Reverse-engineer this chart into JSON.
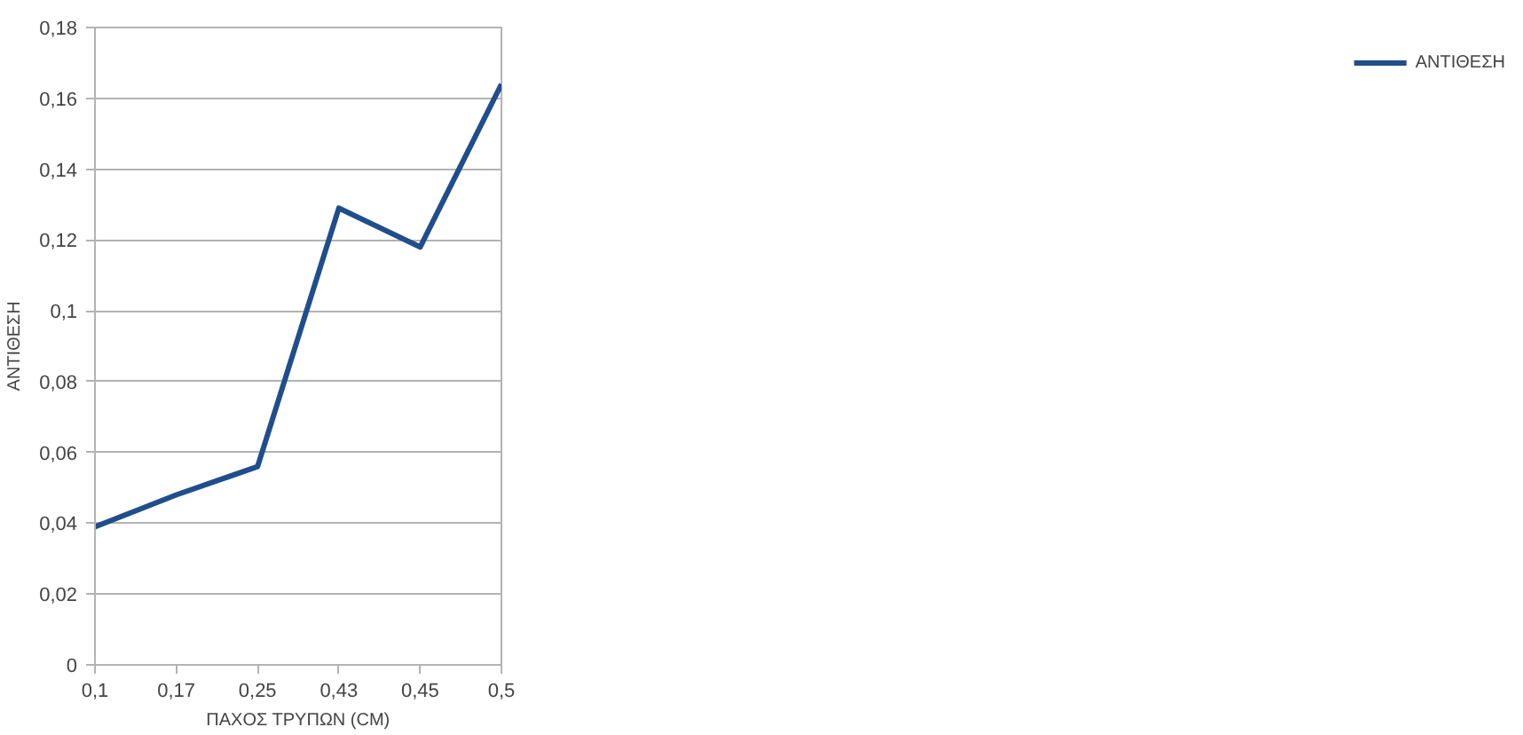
{
  "chart_data": {
    "type": "line",
    "xlabel": "ΠΑΧΟΣ ΤΡΥΠΩΝ (CM)",
    "ylabel": "ΑΝΤΙΘΕΣΗ",
    "categories": [
      "0,1",
      "0,17",
      "0,25",
      "0,43",
      "0,45",
      "0,5"
    ],
    "series": [
      {
        "name": "ΑΝΤΙΘΕΣΗ",
        "color": "#1f4e8c",
        "values": [
          0.039,
          0.048,
          0.056,
          0.129,
          0.118,
          0.164
        ]
      }
    ],
    "ylim": [
      0,
      0.18
    ],
    "yticks": [
      0,
      {
        "value": 0.02,
        "label": "0,02"
      },
      {
        "value": 0.04,
        "label": "0,04"
      },
      {
        "value": 0.06,
        "label": "0,06"
      },
      {
        "value": 0.08,
        "label": "0,08"
      },
      {
        "value": 0.1,
        "label": "0,1"
      },
      {
        "value": 0.12,
        "label": "0,12"
      },
      {
        "value": 0.14,
        "label": "0,14"
      },
      {
        "value": 0.16,
        "label": "0,16"
      },
      {
        "value": 0.18,
        "label": "0,18"
      }
    ],
    "grid": "y",
    "legend": "right",
    "marker": "none",
    "line_style": "solid"
  }
}
